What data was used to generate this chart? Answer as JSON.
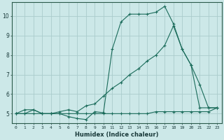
{
  "xlabel": "Humidex (Indice chaleur)",
  "bg_color": "#cce8e8",
  "grid_color": "#aacccc",
  "line_color": "#1a6b5a",
  "xlim": [
    -0.5,
    23.5
  ],
  "ylim": [
    4.5,
    10.7
  ],
  "yticks": [
    5,
    6,
    7,
    8,
    9,
    10
  ],
  "xticks": [
    0,
    1,
    2,
    3,
    4,
    5,
    6,
    7,
    8,
    9,
    10,
    11,
    12,
    13,
    14,
    15,
    16,
    17,
    18,
    19,
    20,
    21,
    22,
    23
  ],
  "line1_x": [
    0,
    1,
    2,
    3,
    4,
    5,
    6,
    7,
    8,
    9,
    10,
    11,
    12,
    13,
    14,
    15,
    16,
    17,
    18,
    19,
    20,
    21,
    22,
    23
  ],
  "line1_y": [
    5.0,
    5.2,
    5.2,
    5.0,
    5.0,
    5.0,
    4.85,
    4.75,
    4.7,
    5.1,
    5.05,
    8.3,
    9.7,
    10.1,
    10.1,
    10.1,
    10.2,
    10.5,
    9.6,
    8.3,
    7.5,
    5.3,
    5.3,
    5.3
  ],
  "line2_x": [
    0,
    1,
    2,
    3,
    4,
    5,
    6,
    7,
    8,
    9,
    10,
    11,
    12,
    13,
    14,
    15,
    16,
    17,
    18,
    19,
    20,
    21,
    22,
    23
  ],
  "line2_y": [
    5.0,
    5.0,
    5.2,
    5.0,
    5.0,
    5.1,
    5.2,
    5.1,
    5.4,
    5.5,
    5.9,
    6.3,
    6.6,
    7.0,
    7.3,
    7.7,
    8.0,
    8.5,
    9.5,
    8.3,
    7.5,
    6.5,
    5.3,
    5.3
  ],
  "line3_x": [
    0,
    1,
    2,
    3,
    4,
    5,
    6,
    7,
    8,
    9,
    10,
    11,
    12,
    13,
    14,
    15,
    16,
    17,
    18,
    19,
    20,
    21,
    22,
    23
  ],
  "line3_y": [
    5.0,
    5.0,
    5.0,
    5.0,
    5.0,
    5.0,
    5.0,
    5.0,
    5.0,
    5.0,
    5.0,
    5.0,
    5.0,
    5.0,
    5.0,
    5.0,
    5.1,
    5.1,
    5.1,
    5.1,
    5.1,
    5.1,
    5.1,
    5.3
  ],
  "ytick_fontsize": 5.5,
  "xtick_fontsize": 4.5,
  "xlabel_fontsize": 6.0
}
